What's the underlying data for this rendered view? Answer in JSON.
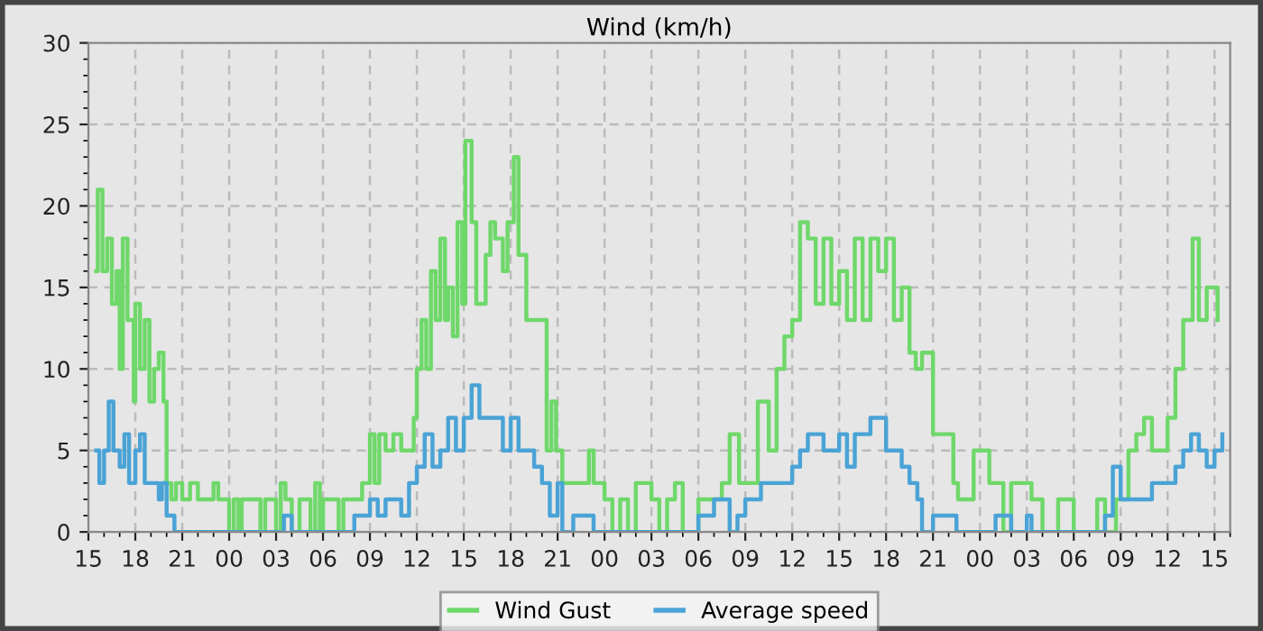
{
  "chart_data": {
    "type": "step",
    "title": "Wind (km/h)",
    "xlim": [
      15,
      88
    ],
    "xticks": [
      {
        "value": 15,
        "label": "15"
      },
      {
        "value": 18,
        "label": "18"
      },
      {
        "value": 21,
        "label": "21"
      },
      {
        "value": 24,
        "label": "00"
      },
      {
        "value": 27,
        "label": "03"
      },
      {
        "value": 30,
        "label": "06"
      },
      {
        "value": 33,
        "label": "09"
      },
      {
        "value": 36,
        "label": "12"
      },
      {
        "value": 39,
        "label": "15"
      },
      {
        "value": 42,
        "label": "18"
      },
      {
        "value": 45,
        "label": "21"
      },
      {
        "value": 48,
        "label": "00"
      },
      {
        "value": 51,
        "label": "03"
      },
      {
        "value": 54,
        "label": "06"
      },
      {
        "value": 57,
        "label": "09"
      },
      {
        "value": 60,
        "label": "12"
      },
      {
        "value": 63,
        "label": "15"
      },
      {
        "value": 66,
        "label": "18"
      },
      {
        "value": 69,
        "label": "21"
      },
      {
        "value": 72,
        "label": "00"
      },
      {
        "value": 75,
        "label": "03"
      },
      {
        "value": 78,
        "label": "06"
      },
      {
        "value": 81,
        "label": "09"
      },
      {
        "value": 84,
        "label": "12"
      },
      {
        "value": 87,
        "label": "15"
      }
    ],
    "ylim": [
      0,
      30
    ],
    "yticks": [
      0,
      5,
      10,
      15,
      20,
      25,
      30
    ],
    "grid": true,
    "legend": "bottom",
    "line_style": "solid",
    "marker": "none",
    "series": [
      {
        "name": "Wind Gust",
        "color": "#6fd86a",
        "x": [
          15.5,
          15.6,
          15.9,
          16.2,
          16.5,
          16.8,
          17.0,
          17.2,
          17.5,
          17.9,
          18.0,
          18.3,
          18.6,
          18.9,
          19.2,
          19.5,
          19.8,
          20.0,
          20.3,
          20.6,
          21.0,
          21.5,
          22.0,
          23.0,
          23.3,
          24.0,
          24.3,
          24.6,
          24.8,
          26.0,
          26.3,
          27.0,
          27.3,
          27.6,
          28.0,
          28.5,
          29.2,
          29.5,
          29.8,
          30.0,
          31.0,
          31.3,
          32.5,
          33.0,
          33.3,
          33.6,
          34.0,
          34.5,
          35.0,
          35.8,
          36.0,
          36.3,
          36.6,
          36.9,
          37.2,
          37.5,
          37.8,
          38.0,
          38.3,
          38.6,
          38.9,
          39.1,
          39.5,
          39.8,
          40.4,
          40.7,
          41.0,
          41.5,
          41.8,
          42.2,
          42.5,
          43.0,
          43.5,
          44.3,
          44.6,
          44.9,
          45.3,
          47.0,
          47.3,
          48.0,
          48.5,
          49.0,
          49.5,
          50.0,
          51.0,
          51.5,
          52.0,
          52.5,
          53.0,
          54.0,
          55.5,
          56.0,
          56.6,
          57.8,
          58.5,
          59.0,
          59.5,
          60.0,
          60.5,
          61.0,
          61.5,
          62.0,
          62.5,
          63.0,
          63.5,
          64.0,
          64.5,
          65.0,
          65.5,
          66.0,
          66.5,
          67.0,
          67.5,
          67.9,
          68.3,
          69.0,
          70.3,
          70.6,
          71.6,
          72.6,
          73.5,
          74.0,
          75.0,
          75.3,
          76.0,
          77.0,
          78.0,
          79.5,
          80.0,
          80.7,
          81.5,
          82.0,
          82.5,
          83.0,
          84.0,
          84.5,
          85.0,
          85.6,
          86.0,
          86.5,
          87.2
        ],
        "values": [
          16,
          21,
          16,
          18,
          14,
          16,
          10,
          18,
          13,
          8,
          14,
          10,
          13,
          8,
          10,
          11,
          8,
          3,
          2,
          3,
          2,
          3,
          2,
          3,
          2,
          0,
          2,
          0,
          2,
          0,
          2,
          0,
          3,
          2,
          0,
          2,
          0,
          3,
          0,
          2,
          0,
          2,
          3,
          6,
          3,
          6,
          5,
          6,
          5,
          7,
          10,
          13,
          10,
          16,
          13,
          18,
          13,
          15,
          12,
          19,
          14,
          24,
          19,
          14,
          17,
          19,
          18,
          16,
          19,
          23,
          17,
          13,
          13,
          5,
          8,
          5,
          3,
          5,
          3,
          2,
          0,
          2,
          0,
          3,
          2,
          0,
          2,
          3,
          0,
          2,
          3,
          6,
          3,
          8,
          5,
          10,
          12,
          13,
          19,
          18,
          14,
          18,
          14,
          16,
          13,
          18,
          13,
          18,
          16,
          18,
          13,
          15,
          11,
          10,
          11,
          6,
          3,
          2,
          5,
          3,
          0,
          3,
          3,
          2,
          0,
          2,
          0,
          2,
          0,
          2,
          5,
          6,
          7,
          5,
          7,
          10,
          13,
          18,
          13,
          15,
          13
        ]
      },
      {
        "name": "Average speed",
        "color": "#4aa3d6",
        "x": [
          15.5,
          15.7,
          16.0,
          16.3,
          16.6,
          17.0,
          17.3,
          17.6,
          18.0,
          18.3,
          18.6,
          19.5,
          19.7,
          20.0,
          20.5,
          27.5,
          28.0,
          32.0,
          33.0,
          33.5,
          34.0,
          35.0,
          35.5,
          36.0,
          36.5,
          37.0,
          37.5,
          38.0,
          38.5,
          39.0,
          39.5,
          40.0,
          41.0,
          41.5,
          42.0,
          42.5,
          43.0,
          43.5,
          44.0,
          44.5,
          45.0,
          45.3,
          46.0,
          47.0,
          47.3,
          54.0,
          55.0,
          56.0,
          56.5,
          57.0,
          58.0,
          60.0,
          60.5,
          61.0,
          62.0,
          63.0,
          63.5,
          64.0,
          65.0,
          66.0,
          67.0,
          67.5,
          68.0,
          68.3,
          69.0,
          70.0,
          70.5,
          73.0,
          74.0,
          75.0,
          75.3,
          80.0,
          80.5,
          81.0,
          83.0,
          84.5,
          85.0,
          85.5,
          86.0,
          86.5,
          87.0,
          87.5
        ],
        "values": [
          5,
          3,
          5,
          8,
          5,
          4,
          6,
          3,
          5,
          6,
          3,
          2,
          3,
          1,
          0,
          1,
          0,
          1,
          2,
          1,
          2,
          1,
          3,
          4,
          6,
          4,
          5,
          7,
          5,
          7,
          9,
          7,
          7,
          5,
          7,
          5,
          5,
          4,
          3,
          1,
          3,
          0,
          1,
          1,
          0,
          1,
          2,
          0,
          1,
          2,
          3,
          4,
          5,
          6,
          5,
          6,
          4,
          6,
          7,
          5,
          4,
          3,
          2,
          0,
          1,
          1,
          0,
          1,
          0,
          1,
          0,
          1,
          4,
          2,
          3,
          4,
          5,
          6,
          5,
          4,
          5,
          6
        ]
      }
    ]
  }
}
